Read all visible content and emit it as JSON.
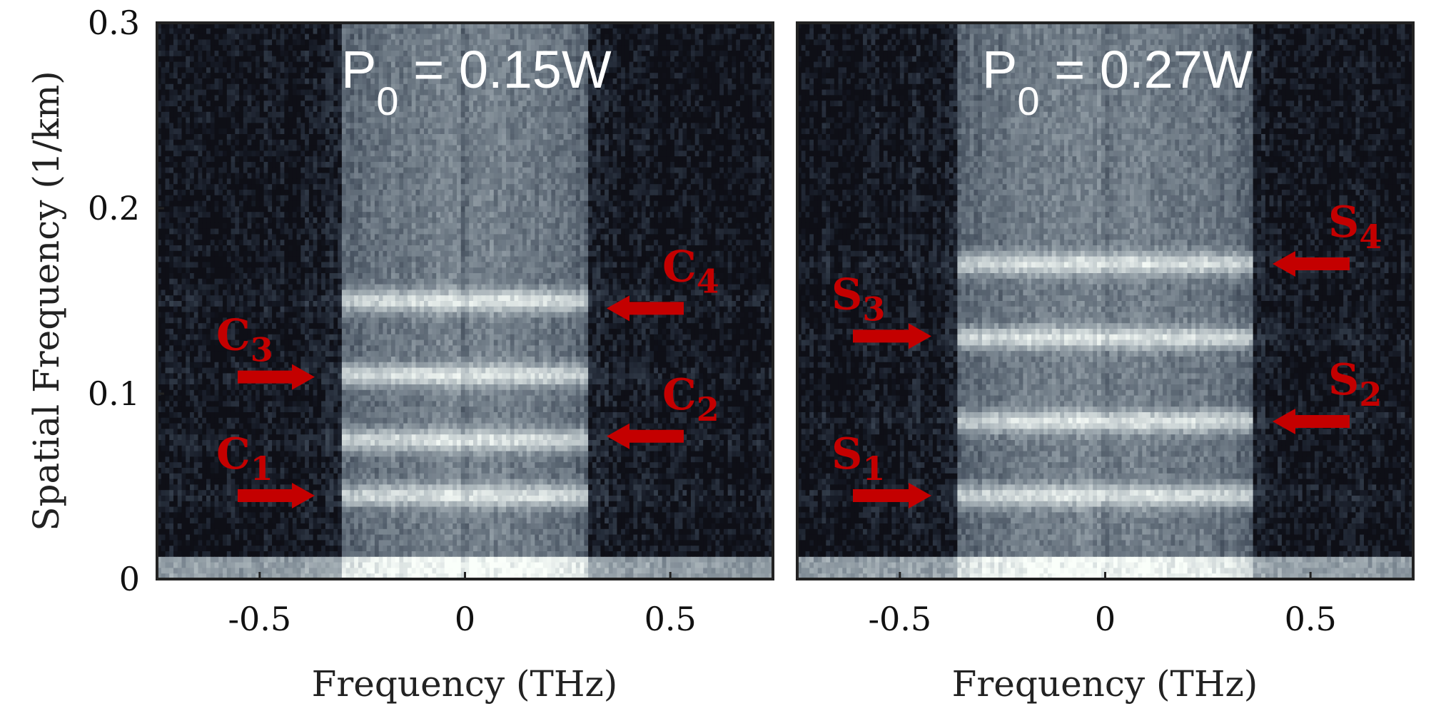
{
  "chart_data": [
    {
      "type": "heatmap",
      "title_main": "P",
      "title_sub": "0",
      "title_rest": " = 0.15W",
      "xlabel": "Frequency (THz)",
      "ylabel": "Spatial Frequency (1/km)",
      "xlim": [
        -0.75,
        0.75
      ],
      "ylim": [
        0,
        0.3
      ],
      "xticks": [
        -0.5,
        0,
        0.5
      ],
      "xtick_labels": [
        "-0.5",
        "0",
        "0.5"
      ],
      "yticks": [
        0,
        0.1,
        0.2,
        0.3
      ],
      "ytick_labels": [
        "0",
        "0.1",
        "0.2",
        "0.3"
      ],
      "colormap": "bone",
      "spectrum_half_width_thz": 0.3,
      "bright_bands_1_per_km": [
        0.045,
        0.075,
        0.11,
        0.15
      ],
      "annotations": [
        {
          "label": "C",
          "sub": "1",
          "y": 0.045,
          "direction": "right"
        },
        {
          "label": "C",
          "sub": "2",
          "y": 0.077,
          "direction": "left"
        },
        {
          "label": "C",
          "sub": "3",
          "y": 0.109,
          "direction": "right"
        },
        {
          "label": "C",
          "sub": "4",
          "y": 0.146,
          "direction": "left"
        }
      ]
    },
    {
      "type": "heatmap",
      "title_main": "P",
      "title_sub": "0",
      "title_rest": " = 0.27W",
      "xlabel": "Frequency (THz)",
      "ylabel": "",
      "xlim": [
        -0.75,
        0.75
      ],
      "ylim": [
        0,
        0.3
      ],
      "xticks": [
        -0.5,
        0,
        0.5
      ],
      "xtick_labels": [
        "-0.5",
        "0",
        "0.5"
      ],
      "yticks": [],
      "ytick_labels": [],
      "colormap": "bone",
      "spectrum_half_width_thz": 0.36,
      "bright_bands_1_per_km": [
        0.045,
        0.085,
        0.13,
        0.17
      ],
      "annotations": [
        {
          "label": "S",
          "sub": "1",
          "y": 0.045,
          "direction": "right"
        },
        {
          "label": "S",
          "sub": "2",
          "y": 0.085,
          "direction": "left"
        },
        {
          "label": "S",
          "sub": "3",
          "y": 0.131,
          "direction": "right"
        },
        {
          "label": "S",
          "sub": "4",
          "y": 0.17,
          "direction": "left"
        }
      ]
    }
  ],
  "colors": {
    "arrow": "#c40000",
    "frame": "#222222",
    "title": "#ffffff"
  }
}
